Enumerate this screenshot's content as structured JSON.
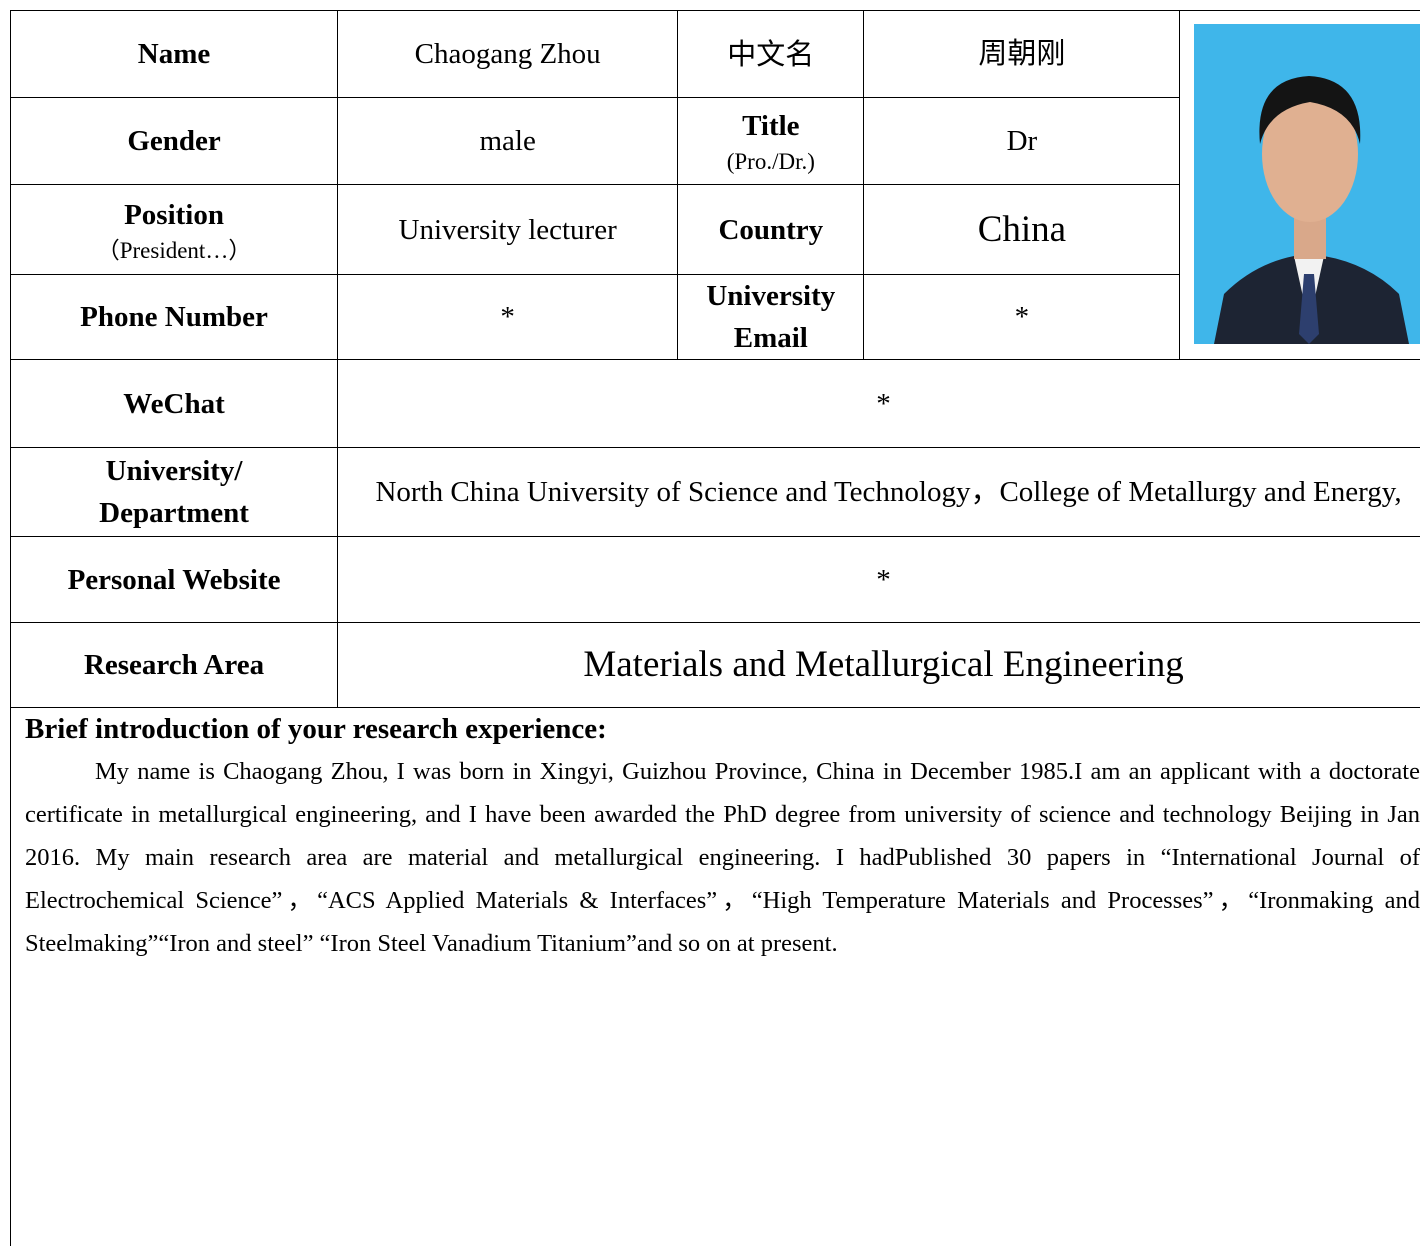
{
  "form": {
    "rows": [
      {
        "cells": [
          {
            "text": "Name"
          },
          {
            "text": "Chaogang Zhou"
          },
          {
            "text": "中文名"
          },
          {
            "text": "周朝刚"
          }
        ]
      },
      {
        "cells": [
          {
            "text": "Gender"
          },
          {
            "text": "male"
          },
          {
            "text": "Title",
            "note": "(Pro./Dr.)"
          },
          {
            "text": "Dr"
          }
        ]
      },
      {
        "cells": [
          {
            "text": "Position",
            "note": "（President…）"
          },
          {
            "text": "University lecturer"
          },
          {
            "text": "Country"
          },
          {
            "text": "China"
          }
        ]
      },
      {
        "cells": [
          {
            "text": "Phone Number"
          },
          {
            "text": "*"
          },
          {
            "text": "University Email"
          },
          {
            "text": "*"
          }
        ]
      }
    ],
    "wide_rows": [
      {
        "label": "WeChat",
        "value": "*"
      },
      {
        "label": "University/ Department",
        "value": "North China University of Science and Technology，College of Metallurgy and Energy,"
      },
      {
        "label": "Personal Website",
        "value": "*"
      },
      {
        "label": "Research Area",
        "value": "Materials and Metallurgical Engineering"
      }
    ],
    "intro": {
      "heading": "Brief introduction of your research experience:",
      "text": "My name is Chaogang Zhou, I was born in Xingyi, Guizhou Province, China in December 1985.I am an applicant with a doctorate certificate in metallurgical engineering, and I have been awarded the PhD degree from university of science and technology Beijing in Jan 2016. My main research area are material and metallurgical engineering. I hadPublished 30 papers in “International Journal of Electrochemical Science”，“ACS Applied Materials & Interfaces”，“High Temperature Materials and Processes”，“Ironmaking and Steelmaking”“Iron and steel” “Iron Steel Vanadium Titanium”and so on at present."
    }
  }
}
